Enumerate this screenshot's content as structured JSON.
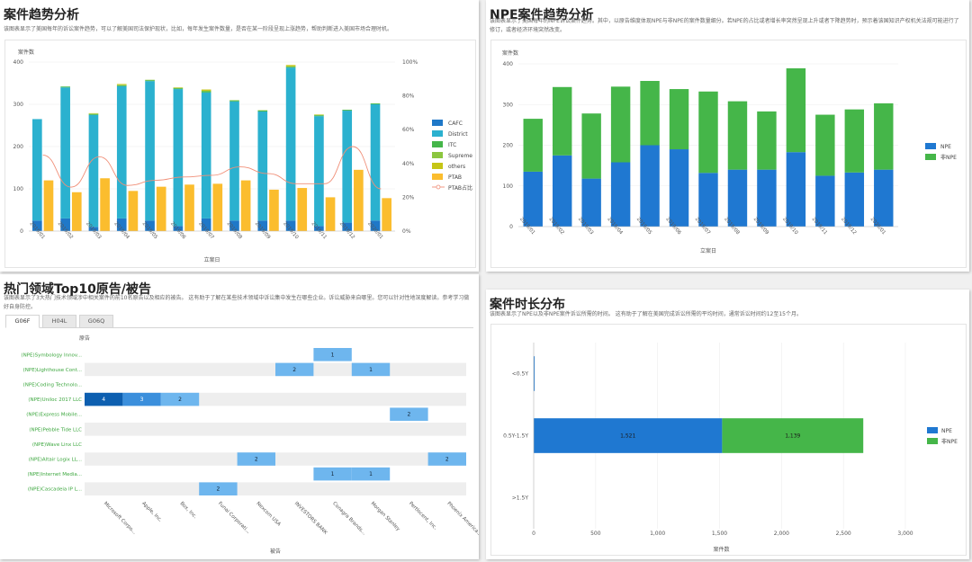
{
  "colors": {
    "cafc": "#1f78c8",
    "district": "#2bb1cf",
    "itc": "#45b649",
    "supreme": "#8cc63f",
    "others": "#c5c516",
    "ptab": "#fbbd2e",
    "ptab_line": "#f08f78",
    "npe": "#1f78d1",
    "non_npe": "#45b649",
    "heat_bg": "#eeeeee",
    "heat_light": "#6eb6ee",
    "heat_mid": "#3b8fdc",
    "heat_dark": "#0d5fb0",
    "label_green": "#3da73f"
  },
  "panel1": {
    "title": "案件趋势分析",
    "desc": "该图表显示了美国每年的诉讼案件趋势，可以了解美国司法保护现状，比如，每年发生案件数量，是否在某一阶段呈现上涨趋势，帮助判断进入美国市场合理时机。",
    "chart_data": {
      "type": "bar",
      "stacked": true,
      "categories": [
        "2019/01",
        "2019/02",
        "2019/03",
        "2019/04",
        "2019/05",
        "2019/06",
        "2019/07",
        "2019/08",
        "2019/09",
        "2019/10",
        "2019/11",
        "2019/12",
        "2020/01"
      ],
      "ylabel": "案件数",
      "xlabel": "立案日",
      "ylim": [
        0,
        400
      ],
      "y2lim": [
        0,
        100
      ],
      "yticks": [
        "0",
        "100",
        "200",
        "300",
        "400"
      ],
      "y2ticks": [
        "0%",
        "20%",
        "40%",
        "60%",
        "80%",
        "100%"
      ],
      "series": [
        {
          "name": "CAFC",
          "values": [
            25,
            30,
            10,
            30,
            25,
            12,
            30,
            25,
            25,
            25,
            12,
            20,
            25
          ]
        },
        {
          "name": "District",
          "values": [
            240,
            310,
            265,
            313,
            330,
            324,
            298,
            282,
            258,
            362,
            260,
            265,
            275
          ]
        },
        {
          "name": "ITC",
          "values": [
            0,
            2,
            2,
            2,
            2,
            2,
            3,
            2,
            2,
            2,
            2,
            2,
            2
          ]
        },
        {
          "name": "Supreme",
          "values": [
            0,
            0,
            1,
            1,
            1,
            1,
            1,
            1,
            1,
            1,
            1,
            0,
            0
          ]
        },
        {
          "name": "others",
          "values": [
            0,
            0,
            1,
            2,
            0,
            1,
            3,
            0,
            0,
            3,
            1,
            0,
            0
          ]
        },
        {
          "name": "PTAB",
          "values": [
            120,
            92,
            125,
            95,
            105,
            110,
            112,
            120,
            98,
            102,
            80,
            145,
            78
          ]
        },
        {
          "name": "PTAB占比",
          "type": "line",
          "values": [
            45,
            26,
            44,
            27,
            30,
            32,
            33,
            38,
            34,
            28,
            28,
            50,
            25
          ]
        }
      ],
      "legend_position": "right"
    }
  },
  "panel2": {
    "title": "NPE案件趋势分析",
    "desc": "该图表显示了美国每年的NPE诉讼案件趋势。其中，以原告维度体现NPE与非NPE的案件数量细分。若NPE的占比或者增长率突然呈现上升或者下降趋势时，预示着该国知识产权机关法规可能进行了修订，或者经济环境突然改变。",
    "chart_data": {
      "type": "bar",
      "stacked": true,
      "categories": [
        "2019/01",
        "2019/02",
        "2019/03",
        "2019/04",
        "2019/05",
        "2019/06",
        "2019/07",
        "2019/08",
        "2019/09",
        "2019/10",
        "2019/11",
        "2019/12",
        "2020/01"
      ],
      "ylabel": "案件数",
      "xlabel": "立案日",
      "ylim": [
        0,
        400
      ],
      "yticks": [
        "0",
        "100",
        "200",
        "300",
        "400"
      ],
      "series": [
        {
          "name": "NPE",
          "values": [
            135,
            175,
            118,
            158,
            200,
            190,
            132,
            140,
            140,
            183,
            125,
            133,
            140
          ]
        },
        {
          "name": "非NPE",
          "values": [
            130,
            168,
            160,
            186,
            158,
            148,
            200,
            168,
            143,
            206,
            150,
            155,
            163
          ]
        }
      ],
      "legend_position": "right"
    }
  },
  "panel3": {
    "title": "热门领域Top10原告/被告",
    "desc": "该图表显示了3大热门技术领域涉中相关案件的前10名原告以及相应的被告。 这有助于了解在某些技术领域中诉讼集中发生在哪些企业。诉讼威胁来自哪里。您可以针对性地深度解读。参考学习做好自身防控。",
    "tabs": [
      "G06F",
      "H04L",
      "G06Q"
    ],
    "chart_data": {
      "type": "heatmap",
      "xlabel": "被告",
      "ylabel": "原告",
      "rows": [
        "(NPE)Symbology Innov...",
        "(NPE)Lighthouse Cont...",
        "(NPE)Coding Technolo...",
        "(NPE)Uniloc 2017 LLC",
        "(NPE)Express Mobile...",
        "(NPE)Pebble Tide LLC",
        "(NPE)Wave Linx LLC",
        "(NPE)Altair Logix LL...",
        "(NPE)Internet Media...",
        "(NPE)Cascadeia IP L..."
      ],
      "cols": [
        "Microsoft Corpo...",
        "Apple, Inc.",
        "Box, Inc.",
        "Funai Corporati...",
        "Nexcom USA",
        "INVESTORS BANK",
        "Conagra Brands...",
        "Morgan Stanley",
        "Pertlocent, Inc.",
        "Phoenix America..."
      ],
      "cells": [
        {
          "row": 0,
          "col": 6,
          "value": 1
        },
        {
          "row": 1,
          "col": 5,
          "value": 2
        },
        {
          "row": 1,
          "col": 7,
          "value": 1
        },
        {
          "row": 3,
          "col": 0,
          "value": 4
        },
        {
          "row": 3,
          "col": 1,
          "value": 3
        },
        {
          "row": 3,
          "col": 2,
          "value": 2
        },
        {
          "row": 4,
          "col": 8,
          "value": 2
        },
        {
          "row": 7,
          "col": 4,
          "value": 2
        },
        {
          "row": 7,
          "col": 9,
          "value": 2
        },
        {
          "row": 8,
          "col": 6,
          "value": 1
        },
        {
          "row": 8,
          "col": 7,
          "value": 1
        },
        {
          "row": 9,
          "col": 3,
          "value": 2
        }
      ]
    }
  },
  "panel4": {
    "title": "案件时长分布",
    "desc": "该图表显示了NPE以及非NPE案件诉讼所需的时间。 这有助于了解在美国完成诉讼所需的平均时间，通常诉讼时间约12至15个月。",
    "chart_data": {
      "type": "bar",
      "orientation": "horizontal",
      "stacked": true,
      "categories": [
        "<0.5Y",
        "0.5Y-1.5Y",
        ">1.5Y"
      ],
      "xlabel": "案件数",
      "xlim": [
        0,
        3000
      ],
      "xticks": [
        "0",
        "500",
        "1,000",
        "1,500",
        "2,000",
        "2,500",
        "3,000"
      ],
      "series": [
        {
          "name": "NPE",
          "values": [
            8,
            1521,
            0
          ],
          "labels": [
            "",
            "1,521",
            ""
          ]
        },
        {
          "name": "非NPE",
          "values": [
            0,
            1139,
            0
          ],
          "labels": [
            "",
            "1,139",
            ""
          ]
        }
      ],
      "legend_position": "right"
    }
  }
}
